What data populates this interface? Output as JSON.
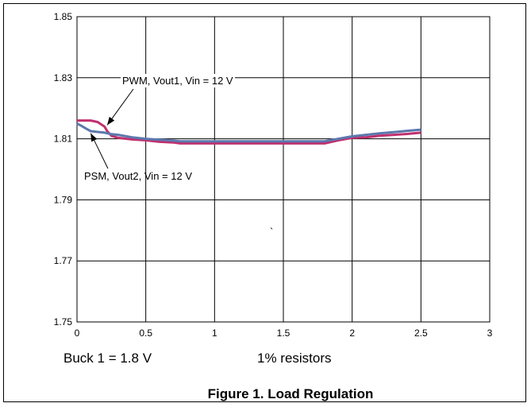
{
  "chart_data": {
    "type": "line",
    "title": "",
    "xlabel": "",
    "ylabel": "",
    "xlim": [
      0,
      3
    ],
    "ylim": [
      1.75,
      1.85
    ],
    "grid": true,
    "x_ticks": [
      "0",
      "0.5",
      "1",
      "1.5",
      "2",
      "2.5",
      "3"
    ],
    "y_ticks": [
      "1.75",
      "1.77",
      "1.79",
      "1.81",
      "1.83",
      "1.85"
    ],
    "series": [
      {
        "name": "PWM, Vout1, Vin = 12 V",
        "color": "#c0306e",
        "points": [
          [
            0,
            1.816
          ],
          [
            0.1,
            1.816
          ],
          [
            0.15,
            1.8155
          ],
          [
            0.2,
            1.814
          ],
          [
            0.22,
            1.8125
          ],
          [
            0.25,
            1.811
          ],
          [
            0.3,
            1.8103
          ],
          [
            0.4,
            1.8098
          ],
          [
            0.5,
            1.8095
          ],
          [
            0.6,
            1.809
          ],
          [
            0.7,
            1.8088
          ],
          [
            0.75,
            1.8085
          ],
          [
            1.0,
            1.8085
          ],
          [
            1.5,
            1.8085
          ],
          [
            1.8,
            1.8085
          ],
          [
            1.9,
            1.8095
          ],
          [
            2.0,
            1.8103
          ],
          [
            2.1,
            1.8105
          ],
          [
            2.2,
            1.811
          ],
          [
            2.3,
            1.8113
          ],
          [
            2.4,
            1.8116
          ],
          [
            2.5,
            1.812
          ]
        ]
      },
      {
        "name": "PSM, Vout2, Vin = 12 V",
        "color": "#5b78ad",
        "points": [
          [
            0,
            1.815
          ],
          [
            0.03,
            1.8143
          ],
          [
            0.06,
            1.8135
          ],
          [
            0.1,
            1.8125
          ],
          [
            0.2,
            1.812
          ],
          [
            0.25,
            1.8115
          ],
          [
            0.3,
            1.8113
          ],
          [
            0.4,
            1.8105
          ],
          [
            0.5,
            1.81
          ],
          [
            0.6,
            1.8097
          ],
          [
            0.7,
            1.8094
          ],
          [
            0.75,
            1.8092
          ],
          [
            1.0,
            1.8092
          ],
          [
            1.5,
            1.8092
          ],
          [
            1.8,
            1.8092
          ],
          [
            1.9,
            1.81
          ],
          [
            2.0,
            1.8108
          ],
          [
            2.1,
            1.8113
          ],
          [
            2.2,
            1.8118
          ],
          [
            2.3,
            1.8122
          ],
          [
            2.4,
            1.8126
          ],
          [
            2.5,
            1.813
          ]
        ]
      }
    ],
    "annotations": [
      {
        "text": "PWM, Vout1, Vin = 12 V",
        "target": [
          0.22,
          1.8145
        ]
      },
      {
        "text": "PSM, Vout2, Vin = 12 V",
        "target": [
          0.1,
          1.8118
        ]
      }
    ],
    "footer_left": "Buck 1 = 1.8 V",
    "footer_mid": "1% resistors",
    "caption": "Figure 1. Load Regulation",
    "stray_mark": "`"
  }
}
